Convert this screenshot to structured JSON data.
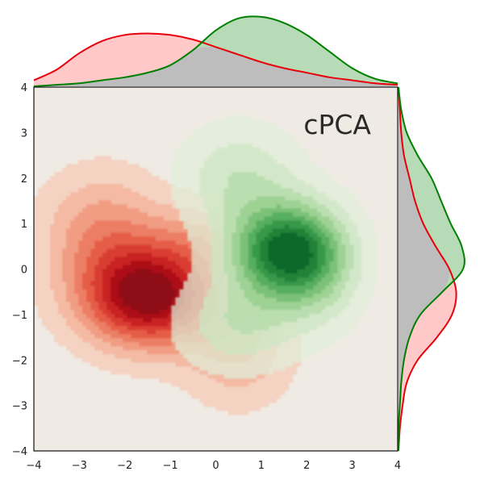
{
  "chart_data": {
    "type": "kde-joint",
    "title": "cPCA",
    "xlabel": "",
    "ylabel": "",
    "xlim": [
      -4,
      4
    ],
    "ylim": [
      -4,
      4
    ],
    "x_ticks": [
      -4,
      -3,
      -2,
      -1,
      0,
      1,
      2,
      3,
      4
    ],
    "y_ticks": [
      -4,
      -3,
      -2,
      -1,
      0,
      1,
      2,
      3,
      4
    ],
    "x_tick_labels": [
      "−4",
      "−3",
      "−2",
      "−1",
      "0",
      "1",
      "2",
      "3",
      "4"
    ],
    "y_tick_labels": [
      "−4",
      "−3",
      "−2",
      "−1",
      "0",
      "1",
      "2",
      "3",
      "4"
    ],
    "grid": false,
    "legend": "none",
    "background_color": "#efebe4",
    "overlap_color": "#bdbdbd",
    "series": [
      {
        "color_line": "#e8000b",
        "color_fill": "#ffc9c9",
        "joint_peak": [
          -1.5,
          -0.6
        ],
        "joint_components": [
          {
            "mx": -1.5,
            "my": -0.6,
            "sx": 1.0,
            "sy": 0.75,
            "w": 1.0
          },
          {
            "mx": -2.5,
            "my": 0.8,
            "sx": 0.9,
            "sy": 0.9,
            "w": 0.35
          },
          {
            "mx": 0.5,
            "my": -1.6,
            "sx": 0.8,
            "sy": 0.9,
            "w": 0.3
          },
          {
            "mx": -0.2,
            "my": 0.6,
            "sx": 0.9,
            "sy": 0.6,
            "w": 0.25
          }
        ],
        "contour_colors": [
          "#f5d0bf",
          "#f4b8a1",
          "#f19a80",
          "#ec7c63",
          "#e45a44",
          "#d83b2f",
          "#c72024",
          "#a90f17",
          "#8c0a12"
        ],
        "marginal_x": {
          "x": [
            -4.0,
            -3.5,
            -3.0,
            -2.5,
            -2.0,
            -1.5,
            -1.0,
            -0.5,
            0.0,
            0.5,
            1.0,
            1.5,
            2.0,
            2.5,
            3.0,
            3.5,
            4.0
          ],
          "density": [
            0.04,
            0.11,
            0.22,
            0.3,
            0.34,
            0.35,
            0.34,
            0.31,
            0.26,
            0.21,
            0.16,
            0.12,
            0.09,
            0.06,
            0.04,
            0.02,
            0.01
          ]
        },
        "marginal_y": {
          "y": [
            -4.0,
            -3.5,
            -3.0,
            -2.5,
            -2.0,
            -1.5,
            -1.0,
            -0.5,
            0.0,
            0.5,
            1.0,
            1.5,
            2.0,
            2.5,
            3.0,
            3.5,
            4.0
          ],
          "density": [
            0.0,
            0.01,
            0.03,
            0.06,
            0.14,
            0.28,
            0.39,
            0.42,
            0.37,
            0.27,
            0.18,
            0.12,
            0.08,
            0.04,
            0.02,
            0.01,
            0.0
          ]
        }
      },
      {
        "color_line": "#008000",
        "color_fill": "#b6dbb6",
        "joint_peak": [
          1.5,
          0.4
        ],
        "joint_components": [
          {
            "mx": 1.5,
            "my": 0.4,
            "sx": 0.8,
            "sy": 0.7,
            "w": 1.0
          },
          {
            "mx": 0.5,
            "my": 2.0,
            "sx": 0.9,
            "sy": 0.8,
            "w": 0.3
          },
          {
            "mx": 0.5,
            "my": -1.2,
            "sx": 0.9,
            "sy": 0.7,
            "w": 0.3
          },
          {
            "mx": 2.2,
            "my": 0.0,
            "sx": 0.7,
            "sy": 0.9,
            "w": 0.3
          }
        ],
        "contour_colors": [
          "#e0eed8",
          "#cde6c4",
          "#b2dba7",
          "#93cd8a",
          "#6fbb6d",
          "#4aa654",
          "#2d9042",
          "#177a33",
          "#085f24"
        ],
        "marginal_x": {
          "x": [
            -4.0,
            -3.5,
            -3.0,
            -2.5,
            -2.0,
            -1.5,
            -1.0,
            -0.5,
            0.0,
            0.5,
            1.0,
            1.5,
            2.0,
            2.5,
            3.0,
            3.5,
            4.0
          ],
          "density": [
            0.0,
            0.01,
            0.02,
            0.04,
            0.06,
            0.09,
            0.14,
            0.24,
            0.37,
            0.45,
            0.46,
            0.42,
            0.34,
            0.23,
            0.12,
            0.05,
            0.02
          ]
        },
        "marginal_y": {
          "y": [
            -4.0,
            -3.5,
            -3.0,
            -2.5,
            -2.0,
            -1.5,
            -1.0,
            -0.5,
            0.0,
            0.5,
            1.0,
            1.5,
            2.0,
            2.5,
            3.0,
            3.5,
            4.0
          ],
          "density": [
            0.0,
            0.0,
            0.01,
            0.02,
            0.04,
            0.08,
            0.16,
            0.32,
            0.47,
            0.46,
            0.38,
            0.31,
            0.24,
            0.14,
            0.06,
            0.02,
            0.0
          ]
        }
      }
    ]
  }
}
